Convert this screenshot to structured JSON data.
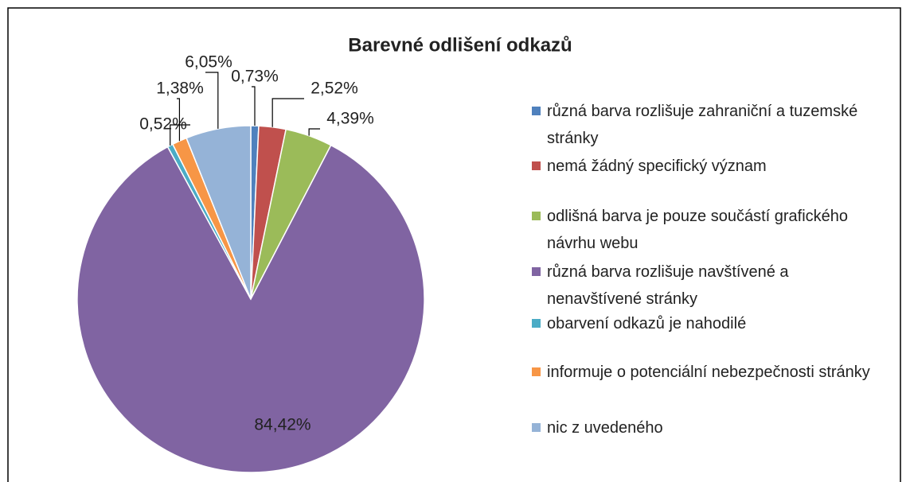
{
  "chart_data": {
    "type": "pie",
    "title": "Barevné odlišení odkazů",
    "categories": [
      "různá barva rozlišuje zahraniční a tuzemské stránky",
      "nemá žádný specifický význam",
      "odlišná barva je pouze součástí grafického návrhu webu",
      "různá barva rozlišuje navštívené a nenavštívené stránky",
      "obarvení odkazů je nahodilé",
      "informuje o potenciální nebezpečnosti stránky",
      "nic z uvedeného"
    ],
    "values": [
      0.73,
      2.52,
      4.39,
      84.42,
      0.52,
      1.38,
      6.05
    ],
    "value_labels": [
      "0,73%",
      "2,52%",
      "4,39%",
      "84,42%",
      "0,52%",
      "1,38%",
      "6,05%"
    ],
    "colors": [
      "#4f81bd",
      "#c0504d",
      "#9bbb59",
      "#8064a2",
      "#4bacc6",
      "#f79646",
      "#95b3d7"
    ],
    "legend": "right"
  }
}
